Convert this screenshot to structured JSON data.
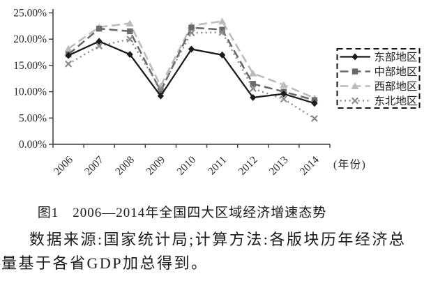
{
  "chart_data": {
    "type": "line",
    "title": "",
    "categories": [
      "2006",
      "2007",
      "2008",
      "2009",
      "2010",
      "2011",
      "2012",
      "2013",
      "2014"
    ],
    "series": [
      {
        "id": "east",
        "name": "东部地区",
        "marker": "diamond",
        "line": "solid",
        "color": "#1b1b1b",
        "values": [
          16.9,
          19.6,
          17.1,
          9.2,
          18.1,
          17.0,
          8.9,
          9.6,
          7.8
        ]
      },
      {
        "id": "central",
        "name": "中部地区",
        "marker": "square",
        "line": "dashed",
        "color": "#6a6a6a",
        "values": [
          17.1,
          22.0,
          21.5,
          10.1,
          22.2,
          21.8,
          11.5,
          10.0,
          8.4
        ]
      },
      {
        "id": "west",
        "name": "西部地区",
        "marker": "triangle",
        "line": "dashed",
        "color": "#bcbcbc",
        "values": [
          18.2,
          22.3,
          23.0,
          11.1,
          22.6,
          23.4,
          13.5,
          11.3,
          8.8
        ]
      },
      {
        "id": "northeast",
        "name": "东北地区",
        "marker": "x",
        "line": "dotted",
        "color": "#8a8a8a",
        "values": [
          15.3,
          18.7,
          20.0,
          10.5,
          21.2,
          21.3,
          10.6,
          8.6,
          4.9
        ]
      }
    ],
    "y_ticks": [
      "0.00%",
      "5.00%",
      "10.00%",
      "15.00%",
      "20.00%",
      "25.00%"
    ],
    "ylim": [
      0,
      25
    ],
    "x_axis_label": "(年份)",
    "legend_position": "right",
    "grid": false,
    "axis_color": "#3a3a3a",
    "text_color": "#2a2a2a"
  },
  "caption": {
    "text": "图1　2006—2014年全国四大区域经济增速态势"
  },
  "source_note": {
    "lines": [
      "数据来源:国家统计局;计算方法:各版块历年经济总",
      "量基于各省GDP加总得到。"
    ]
  }
}
